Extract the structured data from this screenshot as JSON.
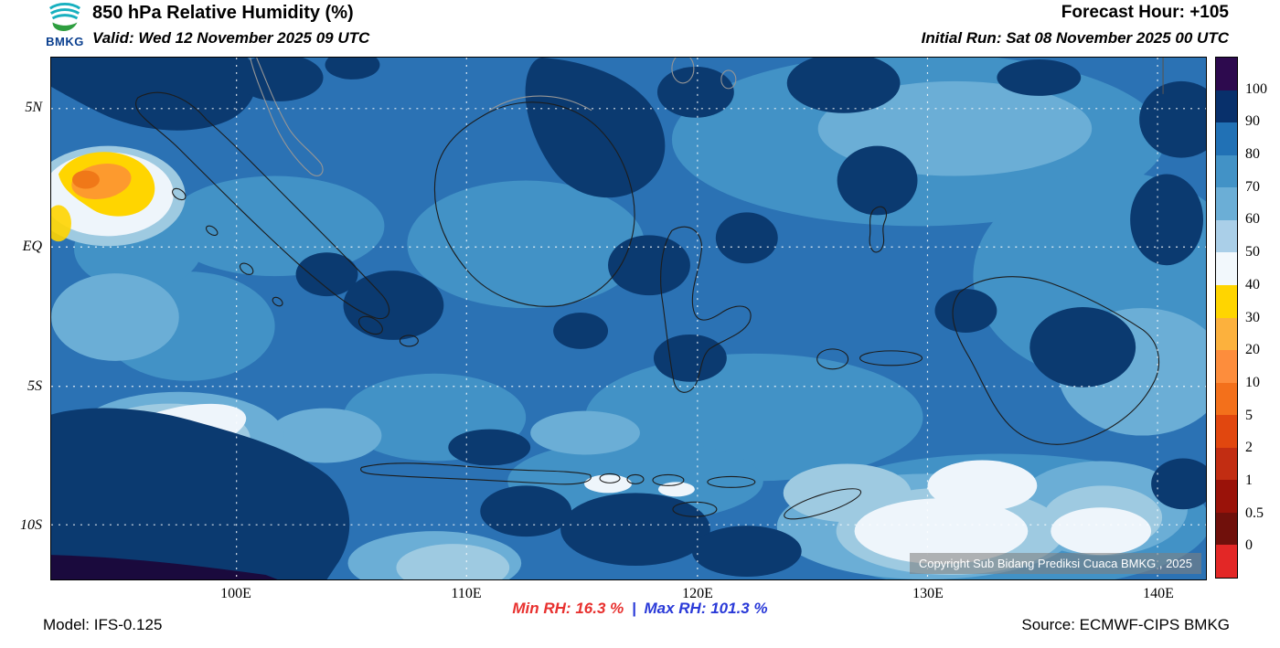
{
  "header": {
    "logo_text": "BMKG",
    "title": "850 hPa Relative Humidity (%)",
    "valid": "Valid: Wed 12 November 2025 09 UTC",
    "forecast_hour": "Forecast Hour: +105",
    "initial_run": "Initial Run: Sat 08 November 2025 00 UTC"
  },
  "map": {
    "lat_labels": [
      "5N",
      "EQ",
      "5S",
      "10S"
    ],
    "lon_labels": [
      "100E",
      "110E",
      "120E",
      "130E",
      "140E"
    ],
    "copyright": "Copyright Sub Bidang Prediksi Cuaca BMKG , 2025"
  },
  "colorbar": {
    "units": "%",
    "tick_labels": [
      "100",
      "90",
      "80",
      "70",
      "60",
      "50",
      "40",
      "30",
      "20",
      "10",
      "5",
      "2",
      "1",
      "0.5",
      "0"
    ],
    "segment_colors_top_to_bottom": [
      "#2d0a4e",
      "#08306b",
      "#2171b5",
      "#4292c6",
      "#6baed6",
      "#aacfe8",
      "#f2f8fc",
      "#ffd500",
      "#fcb13d",
      "#fd8d3c",
      "#f3701b",
      "#e1470f",
      "#c22d12",
      "#9a1209",
      "#70100b",
      "#e32726"
    ]
  },
  "footer": {
    "model": "Model: IFS-0.125",
    "min_rh": "Min RH:  16.3 %",
    "separator": "|",
    "max_rh": "Max RH: 101.3 %",
    "source": "Source: ECMWF-CIPS BMKG"
  }
}
